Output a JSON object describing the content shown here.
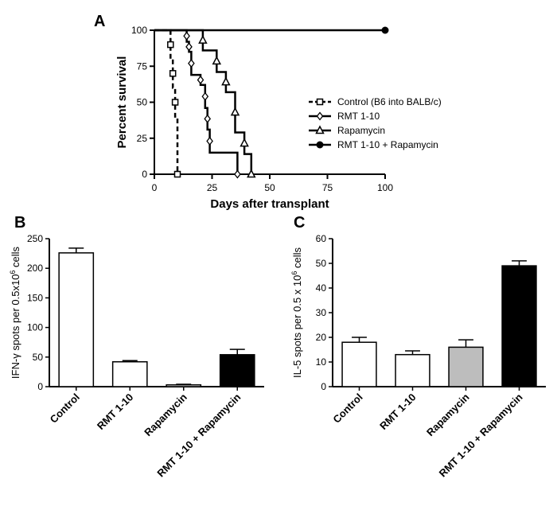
{
  "chart_data": [
    {
      "panel": "A",
      "type": "line",
      "step": true,
      "xlabel": "Days after transplant",
      "ylabel": "Percent survival",
      "xlim": [
        0,
        100
      ],
      "ylim": [
        0,
        100
      ],
      "xticks": [
        "0",
        "25",
        "50",
        "75",
        "100"
      ],
      "yticks": [
        "0",
        "25",
        "50",
        "75",
        "100"
      ],
      "grid": false,
      "legend_position": "right",
      "series": [
        {
          "name": "Control (B6 into BALB/c)",
          "marker": "open-square",
          "dashed": true,
          "x": [
            0,
            7,
            8,
            9,
            10
          ],
          "y": [
            100,
            80,
            60,
            40,
            0
          ]
        },
        {
          "name": "RMT 1-10",
          "marker": "open-diamond",
          "dashed": false,
          "x": [
            0,
            14,
            15,
            16,
            20,
            22,
            23,
            24,
            36
          ],
          "y": [
            100,
            92,
            85,
            69,
            62,
            46,
            31,
            15,
            0
          ]
        },
        {
          "name": "Rapamycin",
          "marker": "open-triangle",
          "dashed": false,
          "x": [
            0,
            21,
            27,
            31,
            35,
            39,
            42
          ],
          "y": [
            100,
            86,
            71,
            57,
            29,
            14,
            0
          ]
        },
        {
          "name": "RMT 1-10 + Rapamycin",
          "marker": "filled-circle",
          "dashed": false,
          "x": [
            0,
            100
          ],
          "y": [
            100,
            100
          ]
        }
      ]
    },
    {
      "panel": "B",
      "type": "bar",
      "ylabel_main": "IFN-γ spots per 0.5x10",
      "ylabel_sup": "6",
      "ylabel_tail": " cells",
      "ylim": [
        0,
        250
      ],
      "yticks": [
        "0",
        "50",
        "100",
        "150",
        "200",
        "250"
      ],
      "categories": [
        "Control",
        "RMT 1-10",
        "Rapamycin",
        "RMT 1-10 + Rapamycin"
      ],
      "values": [
        226,
        42,
        3,
        54
      ],
      "errors": [
        8,
        2,
        1,
        9
      ],
      "fills": [
        "#ffffff",
        "#ffffff",
        "#ffffff",
        "#000000"
      ]
    },
    {
      "panel": "C",
      "type": "bar",
      "ylabel_main": "IL-5 spots per 0.5 x 10",
      "ylabel_sup": "6",
      "ylabel_tail": " cells",
      "ylim": [
        0,
        60
      ],
      "yticks": [
        "0",
        "10",
        "20",
        "30",
        "40",
        "50",
        "60"
      ],
      "categories": [
        "Control",
        "RMT 1-10",
        "Rapamycin",
        "RMT 1-10 + Rapamycin"
      ],
      "values": [
        18,
        13,
        16,
        49
      ],
      "errors": [
        2,
        1.5,
        3,
        2
      ],
      "fills": [
        "#ffffff",
        "#ffffff",
        "#bdbdbd",
        "#000000"
      ]
    }
  ]
}
